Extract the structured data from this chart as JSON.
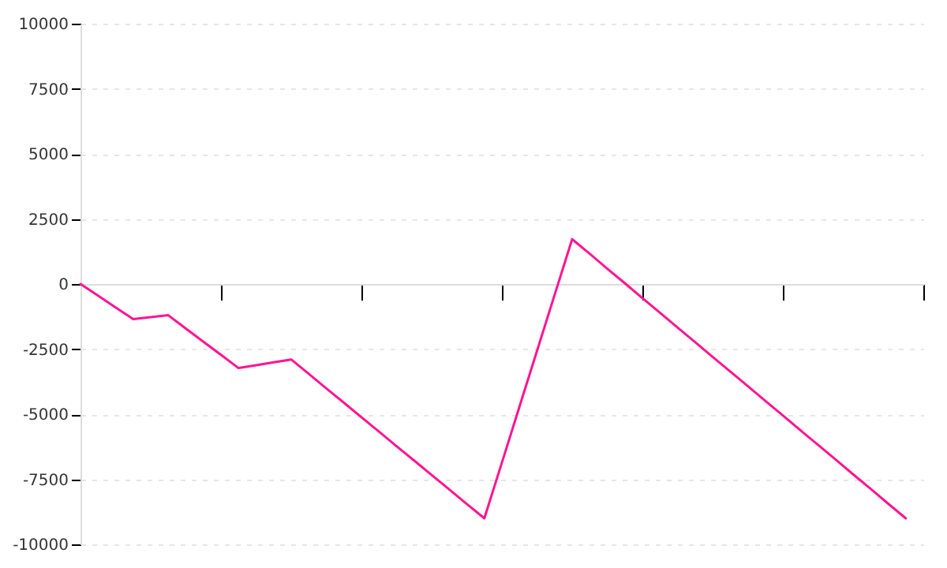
{
  "chart_data": {
    "type": "line",
    "categories": [
      null,
      null,
      null,
      null,
      null,
      null,
      null,
      null,
      null,
      null,
      null,
      null,
      null,
      null,
      null,
      null,
      null,
      null,
      null,
      null,
      null,
      null,
      null,
      null,
      null,
      null,
      null,
      null,
      null,
      null,
      null,
      null,
      null,
      null,
      null,
      null,
      null,
      null,
      null,
      null,
      null,
      null,
      null,
      null,
      null,
      null,
      null,
      null,
      null
    ],
    "series": [
      {
        "color": "#ff1493",
        "values": [
          0,
          -450,
          -900,
          -1350,
          -1275,
          -1200,
          -1710,
          -2220,
          -2720,
          -3230,
          -3120,
          -3010,
          -2900,
          -3450,
          -4010,
          -4560,
          -5120,
          -5670,
          -6230,
          -6780,
          -7340,
          -7890,
          -8450,
          -9000,
          -6860,
          -4710,
          -2570,
          -420,
          1720,
          1160,
          590,
          30,
          -540,
          -1100,
          -1670,
          -2230,
          -2800,
          -3360,
          -3920,
          -4490,
          -5050,
          -5620,
          -6180,
          -6740,
          -7310,
          -7870,
          -8440,
          -9000,
          null
        ]
      }
    ],
    "ylim": [
      -10000,
      10000
    ],
    "yticks": [
      -10000,
      -7500,
      -5000,
      -2500,
      0,
      2500,
      5000,
      7500,
      10000
    ],
    "tick_labels": "y",
    "grid": "y",
    "line_style": "solid"
  }
}
